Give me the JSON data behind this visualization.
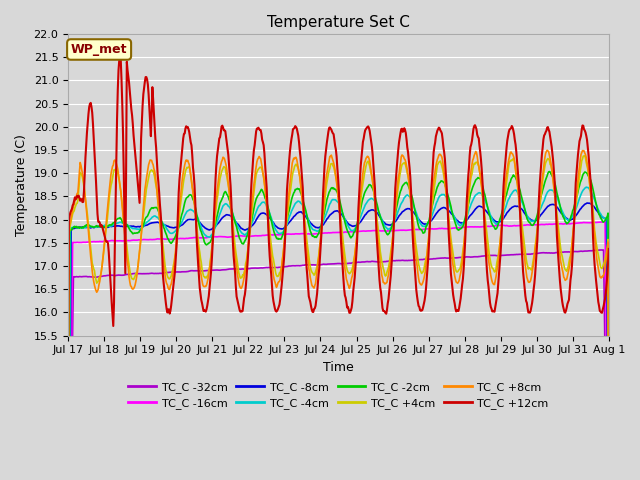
{
  "title": "Temperature Set C",
  "xlabel": "Time",
  "ylabel": "Temperature (C)",
  "ylim": [
    15.5,
    22.0
  ],
  "yticks": [
    15.5,
    16.0,
    16.5,
    17.0,
    17.5,
    18.0,
    18.5,
    19.0,
    19.5,
    20.0,
    20.5,
    21.0,
    21.5,
    22.0
  ],
  "x_start": 0,
  "x_end": 15,
  "x_labels": [
    "Jul 17",
    "Jul 18",
    "Jul 19",
    "Jul 20",
    "Jul 21",
    "Jul 22",
    "Jul 23",
    "Jul 24",
    "Jul 25",
    "Jul 26",
    "Jul 27",
    "Jul 28",
    "Jul 29",
    "Jul 30",
    "Jul 31",
    "Aug 1"
  ],
  "x_ticks": [
    0,
    1,
    2,
    3,
    4,
    5,
    6,
    7,
    8,
    9,
    10,
    11,
    12,
    13,
    14,
    15
  ],
  "plot_bg_color": "#d8d8d8",
  "grid_color": "#ffffff",
  "series_order": [
    "TC_C -32cm",
    "TC_C -16cm",
    "TC_C -8cm",
    "TC_C -4cm",
    "TC_C -2cm",
    "TC_C +4cm",
    "TC_C +8cm",
    "TC_C +12cm"
  ],
  "series": {
    "TC_C -32cm": {
      "color": "#aa00cc",
      "lw": 1.2
    },
    "TC_C -16cm": {
      "color": "#ff00ff",
      "lw": 1.2
    },
    "TC_C -8cm": {
      "color": "#0000dd",
      "lw": 1.2
    },
    "TC_C -4cm": {
      "color": "#00cccc",
      "lw": 1.2
    },
    "TC_C -2cm": {
      "color": "#00cc00",
      "lw": 1.2
    },
    "TC_C +4cm": {
      "color": "#cccc00",
      "lw": 1.2
    },
    "TC_C +8cm": {
      "color": "#ff8800",
      "lw": 1.2
    },
    "TC_C +12cm": {
      "color": "#cc0000",
      "lw": 1.5
    }
  },
  "wp_met_box": {
    "text": "WP_met",
    "facecolor": "#ffffcc",
    "edgecolor": "#886600",
    "textcolor": "#880000",
    "fontweight": "bold",
    "fontsize": 9
  },
  "title_fontsize": 11,
  "axis_label_fontsize": 9,
  "tick_fontsize": 8,
  "legend_fontsize": 8,
  "legend_ncol": 4
}
